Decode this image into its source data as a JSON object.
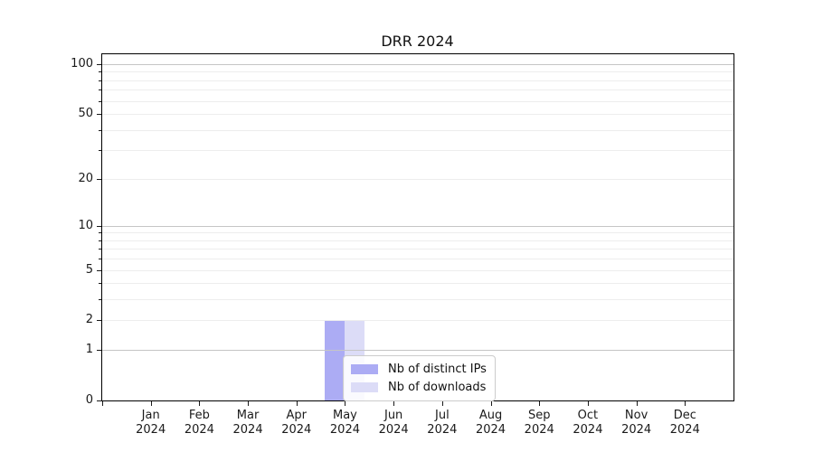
{
  "chart_data": {
    "type": "bar",
    "title": "DRR 2024",
    "x_tick_months": [
      "Jan",
      "Feb",
      "Mar",
      "Apr",
      "May",
      "Jun",
      "Jul",
      "Aug",
      "Sep",
      "Oct",
      "Nov",
      "Dec"
    ],
    "x_tick_year": "2024",
    "series": [
      {
        "name": "Nb of distinct IPs",
        "color": "#acacf4",
        "values": [
          0,
          0,
          0,
          0,
          2,
          0,
          0,
          0,
          0,
          0,
          0,
          0
        ]
      },
      {
        "name": "Nb of downloads",
        "color": "#dcdcf7",
        "values": [
          0,
          0,
          0,
          0,
          2,
          0,
          0,
          0,
          0,
          0,
          0,
          0
        ]
      }
    ],
    "yscale": "log1p",
    "ylim": [
      0,
      114.7
    ],
    "yticks": [
      0,
      1,
      2,
      5,
      10,
      20,
      50,
      100
    ],
    "y_minor_ticks": [
      3,
      4,
      6,
      7,
      8,
      9,
      30,
      40,
      60,
      70,
      80,
      90
    ],
    "y_gridlines_major": [
      1,
      10,
      100
    ],
    "y_gridlines_minor": [
      2,
      3,
      4,
      5,
      6,
      7,
      8,
      9,
      20,
      30,
      40,
      50,
      60,
      70,
      80,
      90
    ],
    "grid": true,
    "legend_position": "inside-bottom-center",
    "colors": {
      "grid_major": "#c5c5c5",
      "grid_minor": "#ededed",
      "axis": "#000000",
      "text": "#1a1a1a",
      "legend_border": "#cccccc"
    }
  }
}
